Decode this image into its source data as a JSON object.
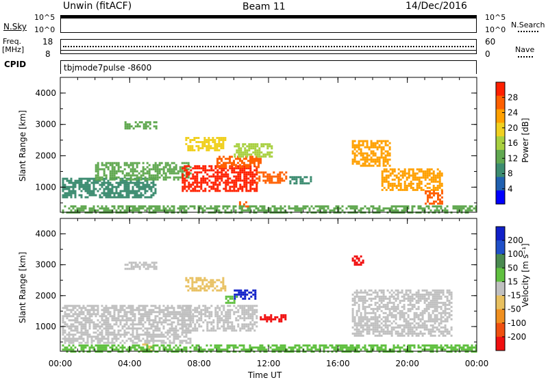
{
  "header": {
    "title": "Unwin (fitACF)",
    "beam": "Beam 11",
    "date": "14/Dec/2016"
  },
  "top_panels": {
    "nsky_label": "N.Sky",
    "nsky_ticks": [
      "10^5",
      "10^0"
    ],
    "nsearch_label": "N.Search",
    "freq_label_line1": "Freq.",
    "freq_label_line2": "[MHz]",
    "freq_ticks": [
      "18",
      "8"
    ],
    "nave_ticks": [
      "60",
      "0"
    ],
    "nave_label": "Nave",
    "cpid_label": "CPID",
    "cpid_text": "tbjmode7pulse  -8600"
  },
  "colors": {
    "power_scale": [
      "#0000ff",
      "#2060b0",
      "#3c8c70",
      "#60a850",
      "#a8d040",
      "#f0d020",
      "#ffa000",
      "#ff6000",
      "#ff2000"
    ],
    "velocity_scale": [
      "#1020c8",
      "#2050c8",
      "#4a8a50",
      "#60c040",
      "#c0c0c0",
      "#e8c060",
      "#f09020",
      "#f05010",
      "#f01010"
    ]
  },
  "chart_data": [
    {
      "type": "heatmap",
      "title": "",
      "xlabel": "",
      "ylabel": "Slant Range [km]",
      "xlim": [
        0,
        24
      ],
      "ylim": [
        200,
        4500
      ],
      "x_ticks": [
        "00:00",
        "04:00",
        "08:00",
        "12:00",
        "16:00",
        "20:00",
        "00:00"
      ],
      "y_ticks": [
        "1000",
        "2000",
        "3000",
        "4000"
      ],
      "colorbar": {
        "label": "Power [dB]",
        "ticks": [
          "4",
          "8",
          "12",
          "16",
          "20",
          "24",
          "28"
        ],
        "range": [
          0,
          30
        ]
      },
      "regions": [
        {
          "t0": 0.1,
          "t1": 5.5,
          "r0": 700,
          "r1": 1300,
          "value": 9
        },
        {
          "t0": 2.0,
          "t1": 7.5,
          "r0": 1250,
          "r1": 1800,
          "value": 11
        },
        {
          "t0": 7.0,
          "t1": 11.3,
          "r0": 900,
          "r1": 1700,
          "value": 27
        },
        {
          "t0": 9.0,
          "t1": 11.5,
          "r0": 1650,
          "r1": 2000,
          "value": 25
        },
        {
          "t0": 3.7,
          "t1": 5.5,
          "r0": 2900,
          "r1": 3100,
          "value": 13
        },
        {
          "t0": 7.2,
          "t1": 9.5,
          "r0": 2200,
          "r1": 2600,
          "value": 17
        },
        {
          "t0": 10.0,
          "t1": 12.2,
          "r0": 2000,
          "r1": 2400,
          "value": 15
        },
        {
          "t0": 11.3,
          "t1": 13.0,
          "r0": 1150,
          "r1": 1500,
          "value": 25
        },
        {
          "t0": 13.2,
          "t1": 14.5,
          "r0": 1150,
          "r1": 1350,
          "value": 8
        },
        {
          "t0": 16.8,
          "t1": 19.0,
          "r0": 1700,
          "r1": 2500,
          "value": 23
        },
        {
          "t0": 18.5,
          "t1": 22.0,
          "r0": 900,
          "r1": 1600,
          "value": 20
        },
        {
          "t0": 21.0,
          "t1": 22.0,
          "r0": 500,
          "r1": 900,
          "value": 24
        },
        {
          "t0": 10.3,
          "t1": 11.0,
          "r0": 350,
          "r1": 550,
          "value": 26
        },
        {
          "t0": 0.1,
          "t1": 24.0,
          "r0": 220,
          "r1": 420,
          "value": 10
        }
      ]
    },
    {
      "type": "heatmap",
      "title": "",
      "xlabel": "Time UT",
      "ylabel": "Slant Range [km]",
      "xlim": [
        0,
        24
      ],
      "ylim": [
        200,
        4500
      ],
      "x_ticks": [
        "00:00",
        "04:00",
        "08:00",
        "12:00",
        "16:00",
        "20:00",
        "00:00"
      ],
      "y_ticks": [
        "1000",
        "2000",
        "3000",
        "4000"
      ],
      "colorbar": {
        "label": "Velocity [m s⁻¹]",
        "ticks": [
          "200",
          "100",
          "50",
          "15",
          "-15",
          "-50",
          "-100",
          "-200"
        ],
        "range": [
          -250,
          250
        ]
      },
      "regions": [
        {
          "t0": 0.1,
          "t1": 7.5,
          "r0": 500,
          "r1": 1700,
          "value": 0
        },
        {
          "t0": 7.0,
          "t1": 11.3,
          "r0": 900,
          "r1": 1700,
          "value": 0
        },
        {
          "t0": 3.7,
          "t1": 5.5,
          "r0": 2900,
          "r1": 3100,
          "value": -20
        },
        {
          "t0": 7.2,
          "t1": 9.5,
          "r0": 2200,
          "r1": 2600,
          "value": -30
        },
        {
          "t0": 10.0,
          "t1": 11.2,
          "r0": 1900,
          "r1": 2200,
          "value": 210
        },
        {
          "t0": 9.5,
          "t1": 10.2,
          "r0": 1800,
          "r1": 2000,
          "value": 60
        },
        {
          "t0": 11.5,
          "t1": 13.0,
          "r0": 1150,
          "r1": 1400,
          "value": -220
        },
        {
          "t0": 16.8,
          "t1": 22.5,
          "r0": 700,
          "r1": 2200,
          "value": 10
        },
        {
          "t0": 16.8,
          "t1": 17.4,
          "r0": 3000,
          "r1": 3300,
          "value": -200
        },
        {
          "t0": 4.6,
          "t1": 5.3,
          "r0": 250,
          "r1": 450,
          "value": -40
        },
        {
          "t0": 0.1,
          "t1": 24.0,
          "r0": 220,
          "r1": 420,
          "value": 30
        }
      ]
    }
  ]
}
